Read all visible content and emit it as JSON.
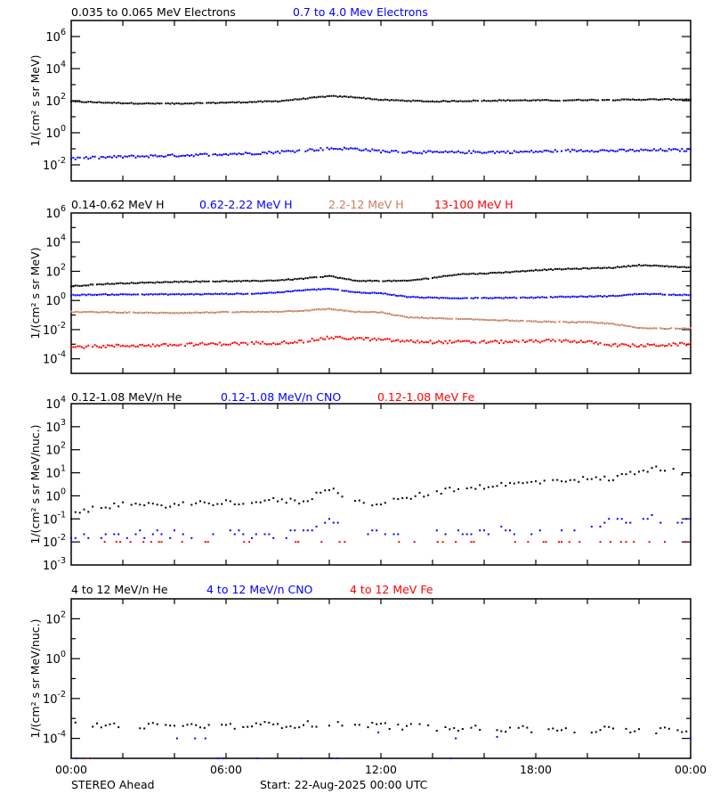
{
  "footer": {
    "spacecraft": "STEREO Ahead",
    "start": "Start: 22-Aug-2025 00:00 UTC"
  },
  "colors": {
    "black": "#000000",
    "blue": "#0000ff",
    "tan": "#c87c5c",
    "red": "#ff0000"
  },
  "chart_data": [
    {
      "type": "scatter",
      "ylabel": "1/(cm² s sr MeV)",
      "yscale": "log",
      "ylim": [
        0.001,
        10000000
      ],
      "ytick_exponents": [
        6,
        4,
        2,
        0,
        -2
      ],
      "xlim_hours": [
        0,
        24
      ],
      "xtick_labels": [
        "00:00",
        "06:00",
        "12:00",
        "18:00",
        "00:00"
      ],
      "x_hours": [
        0,
        1,
        2,
        3,
        4,
        5,
        6,
        7,
        8,
        9,
        10,
        11,
        12,
        13,
        14,
        15,
        16,
        17,
        18,
        19,
        20,
        21,
        22,
        23,
        24
      ],
      "series": [
        {
          "name": "0.035 to 0.065 MeV Electrons",
          "color": "#000000",
          "values": [
            89,
            79,
            71,
            66,
            66,
            71,
            76,
            83,
            93,
            132,
            191,
            166,
            112,
            100,
            89,
            95,
            100,
            105,
            105,
            105,
            112,
            112,
            117,
            120,
            120
          ]
        },
        {
          "name": "0.7 to 4.0 Mev Electrons",
          "color": "#0000ff",
          "values": [
            0.025,
            0.028,
            0.032,
            0.035,
            0.038,
            0.042,
            0.048,
            0.052,
            0.063,
            0.079,
            0.105,
            0.1,
            0.071,
            0.063,
            0.06,
            0.06,
            0.063,
            0.063,
            0.066,
            0.076,
            0.079,
            0.076,
            0.079,
            0.083,
            0.083
          ]
        }
      ]
    },
    {
      "type": "scatter",
      "ylabel": "1/(cm² s sr MeV)",
      "yscale": "log",
      "ylim": [
        1e-05,
        1000000
      ],
      "ytick_exponents": [
        6,
        4,
        2,
        0,
        -2,
        -4
      ],
      "xlim_hours": [
        0,
        24
      ],
      "x_hours": [
        0,
        1,
        2,
        3,
        4,
        5,
        6,
        7,
        8,
        9,
        10,
        11,
        12,
        13,
        14,
        15,
        16,
        17,
        18,
        19,
        20,
        21,
        22,
        23,
        24
      ],
      "series": [
        {
          "name": "0.14-0.62 MeV H",
          "color": "#000000",
          "values": [
            9.5,
            12.6,
            15.1,
            16.6,
            19.1,
            20,
            20.9,
            21.4,
            24,
            31.6,
            47.9,
            22.4,
            21.9,
            21.9,
            35.5,
            63,
            70.8,
            89,
            120,
            141,
            158,
            178,
            263,
            224,
            182
          ]
        },
        {
          "name": "0.62-2.22 MeV H",
          "color": "#0000ff",
          "values": [
            2.34,
            2.51,
            2.57,
            2.63,
            2.63,
            2.69,
            2.82,
            2.88,
            3.55,
            5.01,
            6.31,
            3.55,
            3.16,
            1.78,
            1.51,
            1.45,
            1.48,
            1.51,
            1.58,
            1.78,
            1.86,
            2.0,
            2.82,
            2.63,
            2.34
          ]
        },
        {
          "name": "2.2-12 MeV H",
          "color": "#c87c5c",
          "values": [
            0.162,
            0.158,
            0.151,
            0.141,
            0.141,
            0.148,
            0.158,
            0.162,
            0.174,
            0.2,
            0.263,
            0.166,
            0.151,
            0.0708,
            0.0603,
            0.0525,
            0.0479,
            0.0417,
            0.0355,
            0.0331,
            0.0316,
            0.0251,
            0.0126,
            0.0117,
            0.0126
          ]
        },
        {
          "name": "13-100 MeV H",
          "color": "#ff0000",
          "values": [
            0.00063,
            0.00071,
            0.00079,
            0.00083,
            0.00089,
            0.001,
            0.00107,
            0.00117,
            0.00126,
            0.00158,
            0.00282,
            0.00251,
            0.002,
            0.00158,
            0.00141,
            0.00141,
            0.00141,
            0.00151,
            0.00158,
            0.00178,
            0.00141,
            0.00089,
            0.00079,
            0.00089,
            0.00107
          ]
        }
      ]
    },
    {
      "type": "scatter",
      "ylabel": "1/(cm² s sr MeV/nuc.)",
      "yscale": "log",
      "ylim": [
        0.001,
        10000
      ],
      "ytick_exponents": [
        4,
        3,
        2,
        1,
        0,
        -1,
        -2,
        -3
      ],
      "xlim_hours": [
        0,
        24
      ],
      "x_hours": [
        0,
        1,
        2,
        3,
        4,
        5,
        6,
        7,
        8,
        9,
        10,
        11,
        12,
        13,
        14,
        15,
        16,
        17,
        18,
        19,
        20,
        21,
        22,
        23,
        24
      ],
      "series": [
        {
          "name": "0.12-1.08 MeV/n He",
          "color": "#000000",
          "values": [
            0.126,
            0.355,
            0.398,
            0.38,
            0.417,
            0.479,
            0.525,
            0.562,
            0.631,
            0.562,
            2.24,
            0.631,
            0.417,
            0.794,
            1.41,
            1.91,
            2.63,
            3.16,
            3.8,
            5.01,
            5.25,
            5.62,
            12.6,
            15.8,
            7.94
          ]
        },
        {
          "name": "0.12-1.08 MeV/n CNO",
          "color": "#0000ff",
          "values": [
            0.02,
            0.02,
            0.022,
            0.022,
            0.022,
            0.022,
            0.025,
            0.025,
            0.022,
            0.025,
            0.089,
            0.04,
            0.025,
            0.025,
            0.028,
            0.028,
            0.03,
            0.032,
            0.032,
            0.04,
            0.05,
            0.079,
            0.11,
            0.1,
            0.079
          ]
        },
        {
          "name": "0.12-1.08 MeV Fe",
          "color": "#ff0000",
          "point_hours": [
            1.3,
            1.75,
            1.9,
            2.3,
            2.8,
            3.1,
            3.4,
            3.5,
            4.3,
            5.2,
            5.3,
            6.7,
            6.9,
            8.7,
            8.8,
            9.7,
            10.4,
            10.6,
            12.7,
            13.3,
            14.2,
            14.4,
            14.9,
            15.5,
            15.6,
            17.2,
            17.7,
            18.3,
            18.4,
            18.9,
            19.0,
            19.3,
            19.7,
            20.5,
            20.9,
            21.3,
            21.5,
            21.8,
            22.4,
            23.0,
            23.8
          ],
          "point_value": 0.01
        }
      ]
    },
    {
      "type": "scatter",
      "ylabel": "1/(cm² s sr MeV/nuc.)",
      "yscale": "log",
      "ylim": [
        1e-05,
        1000
      ],
      "ytick_exponents": [
        2,
        0,
        -2,
        -4
      ],
      "xlim_hours": [
        0,
        24
      ],
      "xtick_labels": [
        "00:00",
        "06:00",
        "12:00",
        "18:00",
        "00:00"
      ],
      "x_hours": [
        0,
        1,
        2,
        3,
        4,
        5,
        6,
        7,
        8,
        9,
        10,
        11,
        12,
        13,
        14,
        15,
        16,
        17,
        18,
        19,
        20,
        21,
        22,
        23,
        24
      ],
      "series": [
        {
          "name": "4 to 12 MeV/n He",
          "color": "#000000",
          "values": [
            0.00045,
            0.00045,
            0.00042,
            0.00042,
            0.0004,
            0.00042,
            0.00042,
            0.00045,
            0.00048,
            0.0005,
            0.00052,
            0.0005,
            0.00045,
            0.0004,
            0.00035,
            0.00035,
            0.00033,
            0.0003,
            0.00028,
            0.00028,
            0.00027,
            0.00026,
            0.00025,
            0.00025,
            0.00025
          ]
        },
        {
          "name": "4 to 12 MeV/n CNO",
          "color": "#0000ff",
          "points": [
            [
              0.2,
              1e-05
            ],
            [
              0.7,
              1e-05
            ],
            [
              4.1,
              0.0001
            ],
            [
              4.8,
              0.0001
            ],
            [
              5.2,
              0.0001
            ],
            [
              5.7,
              1e-05
            ],
            [
              5.9,
              1e-05
            ],
            [
              7.2,
              1e-05
            ],
            [
              8.9,
              1e-05
            ],
            [
              10.1,
              1e-05
            ],
            [
              10.3,
              1e-05
            ],
            [
              11.9,
              0.0002
            ],
            [
              14.7,
              1e-05
            ],
            [
              14.9,
              0.0001
            ],
            [
              16.5,
              0.00012
            ],
            [
              24,
              0.0001
            ]
          ]
        },
        {
          "name": "4 to 12 MeV Fe",
          "color": "#ff0000",
          "points": [
            [
              0.65,
              1e-05
            ]
          ]
        }
      ]
    }
  ]
}
